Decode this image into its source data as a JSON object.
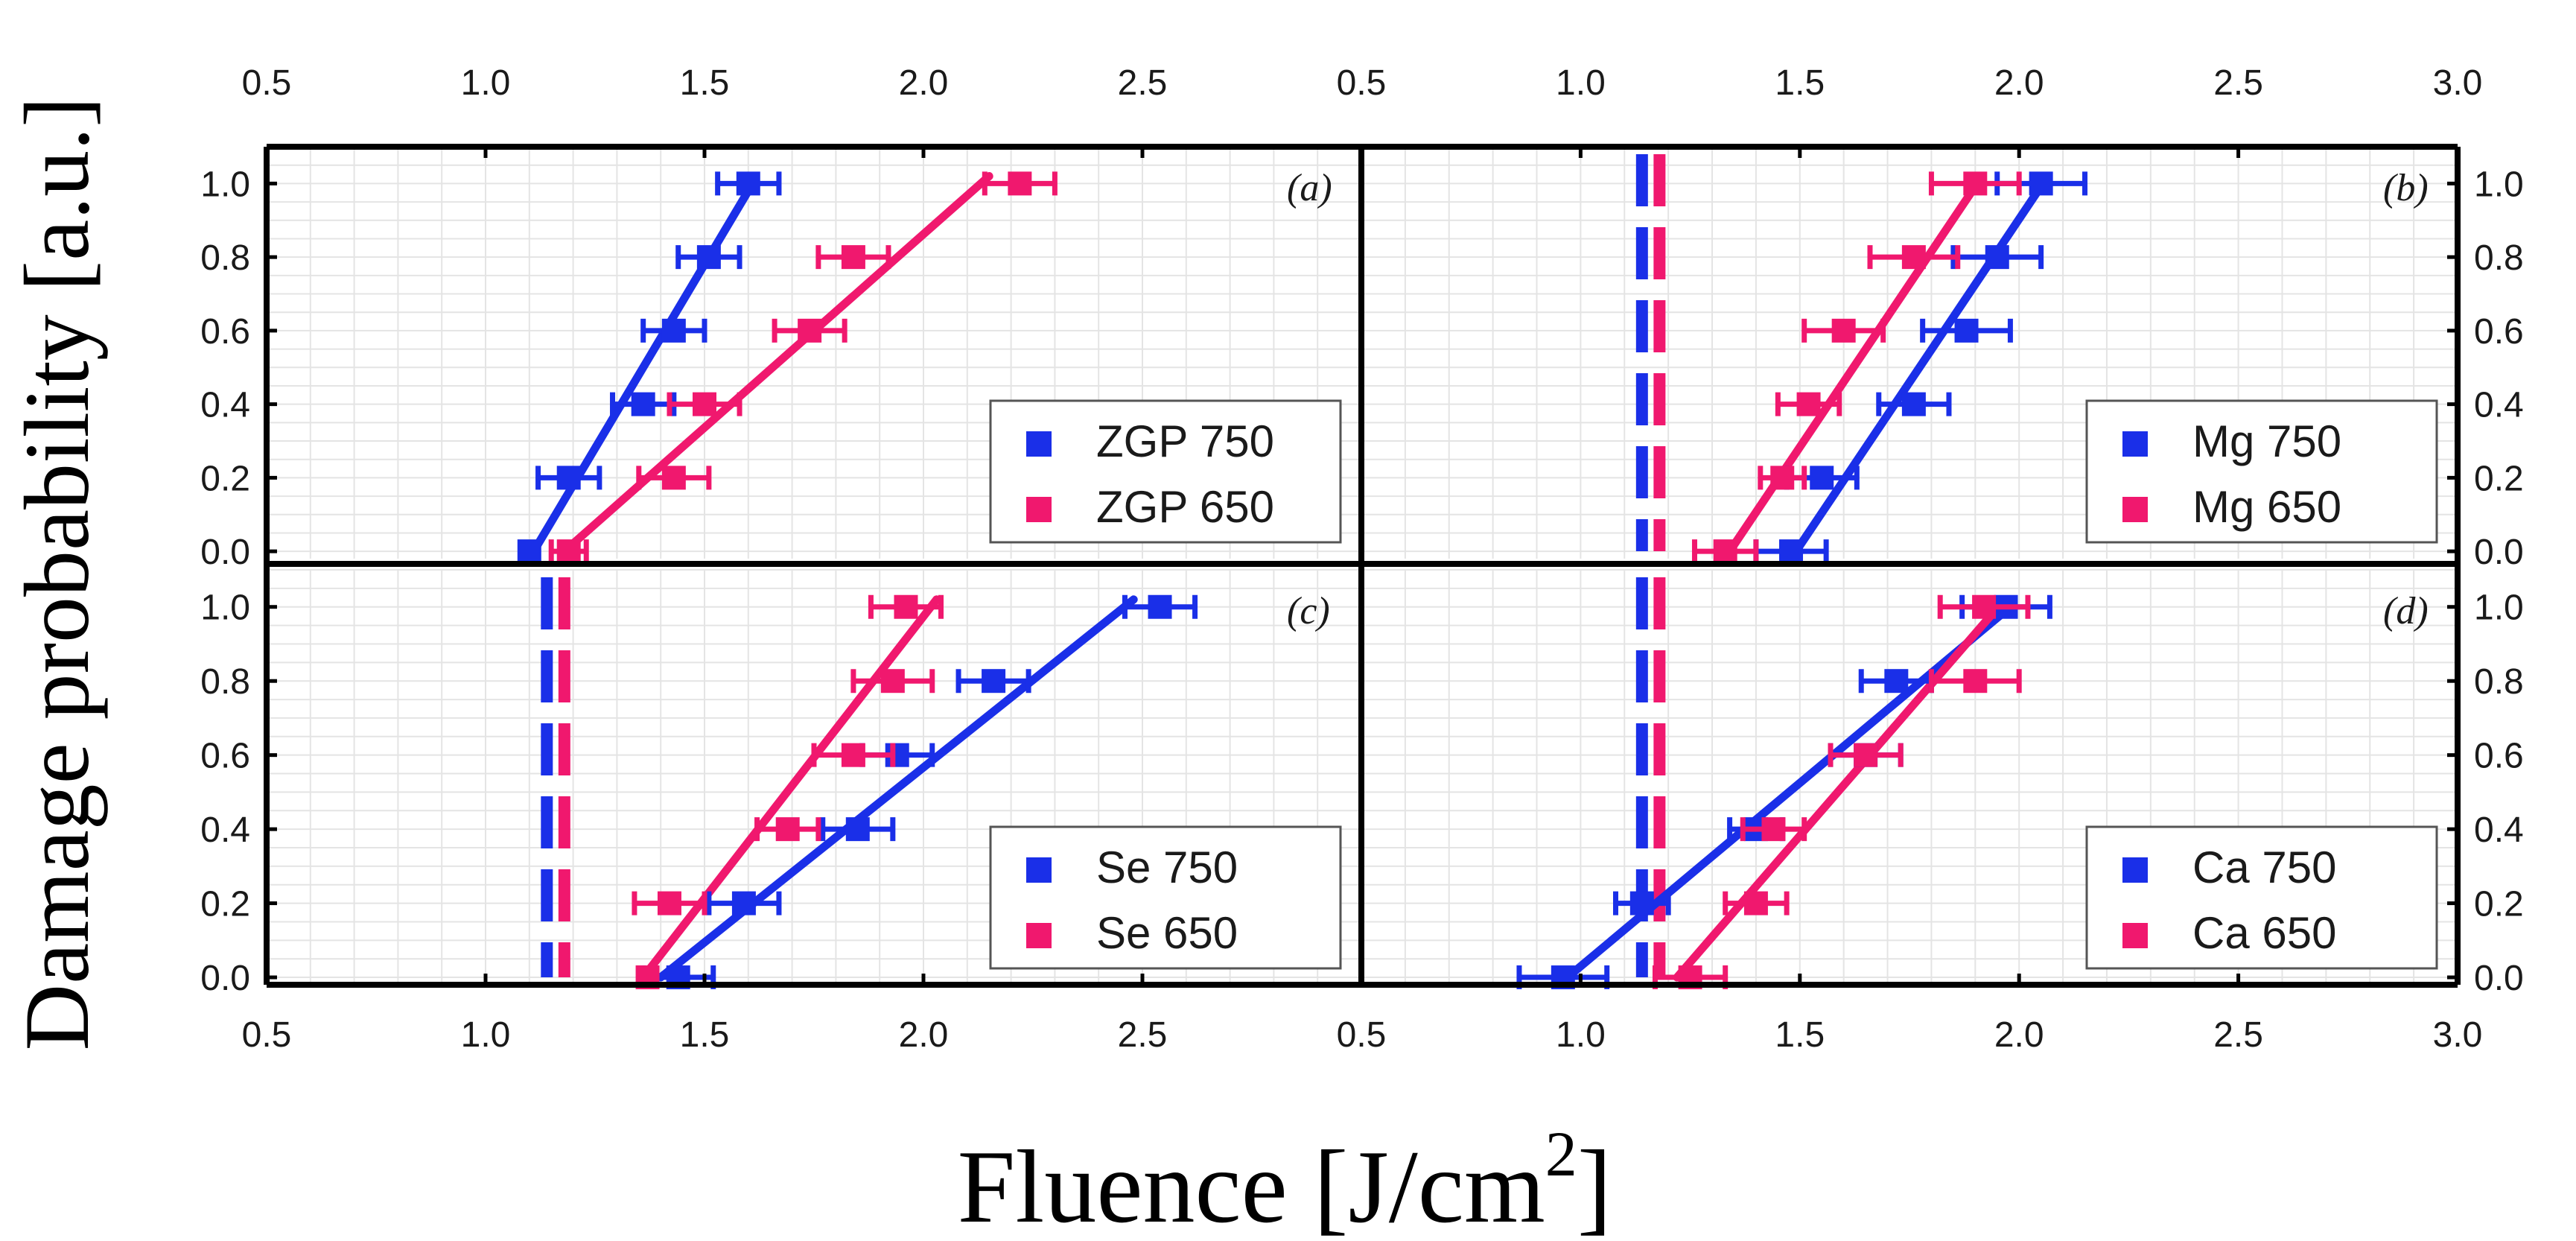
{
  "figure": {
    "ylabel": "Damage probability [a.u.]",
    "xlabel_main": "Fluence [J/cm",
    "xlabel_sup": "2",
    "xlabel_end": "]"
  },
  "colors": {
    "blue": "#1a2fe8",
    "pink": "#f0186e"
  },
  "chart_data": [
    {
      "type": "scatter",
      "panel": "(a)",
      "xlim": [
        0.5,
        3.0
      ],
      "ylim": [
        0.0,
        1.1
      ],
      "x_ticks": [
        0.5,
        1.0,
        1.5,
        2.0,
        2.5
      ],
      "y_ticks": [
        0.0,
        0.2,
        0.4,
        0.6,
        0.8,
        1.0
      ],
      "grid": true,
      "legend_position": "bottom-right",
      "series": [
        {
          "name": "ZGP 750",
          "color": "#1a2fe8",
          "points": [
            {
              "x": 1.1,
              "y": 0.0,
              "err": 0.0
            },
            {
              "x": 1.19,
              "y": 0.2,
              "err": 0.07
            },
            {
              "x": 1.36,
              "y": 0.4,
              "err": 0.07
            },
            {
              "x": 1.43,
              "y": 0.6,
              "err": 0.07
            },
            {
              "x": 1.51,
              "y": 0.8,
              "err": 0.07
            },
            {
              "x": 1.6,
              "y": 1.0,
              "err": 0.07
            }
          ],
          "fit": [
            [
              1.1,
              -0.02
            ],
            [
              1.61,
              1.0
            ]
          ]
        },
        {
          "name": "ZGP 650",
          "color": "#f0186e",
          "points": [
            {
              "x": 1.19,
              "y": 0.0,
              "err": 0.04
            },
            {
              "x": 1.43,
              "y": 0.2,
              "err": 0.08
            },
            {
              "x": 1.5,
              "y": 0.4,
              "err": 0.08
            },
            {
              "x": 1.74,
              "y": 0.6,
              "err": 0.08
            },
            {
              "x": 1.84,
              "y": 0.8,
              "err": 0.08
            },
            {
              "x": 2.22,
              "y": 1.0,
              "err": 0.08
            }
          ],
          "fit": [
            [
              1.18,
              0.0
            ],
            [
              2.15,
              1.02
            ]
          ]
        }
      ]
    },
    {
      "type": "scatter",
      "panel": "(b)",
      "xlim": [
        0.5,
        3.0
      ],
      "ylim": [
        0.0,
        1.1
      ],
      "x_ticks": [
        0.5,
        1.0,
        1.5,
        2.0,
        2.5,
        3.0
      ],
      "y_ticks": [
        0.0,
        0.2,
        0.4,
        0.6,
        0.8,
        1.0
      ],
      "grid": true,
      "legend_position": "bottom-right",
      "vlines": [
        {
          "x": 1.14,
          "color": "#1a2fe8"
        },
        {
          "x": 1.18,
          "color": "#f0186e"
        }
      ],
      "series": [
        {
          "name": "Mg 750",
          "color": "#1a2fe8",
          "points": [
            {
              "x": 1.48,
              "y": 0.0,
              "err": 0.08
            },
            {
              "x": 1.55,
              "y": 0.2,
              "err": 0.08
            },
            {
              "x": 1.76,
              "y": 0.4,
              "err": 0.08
            },
            {
              "x": 1.88,
              "y": 0.6,
              "err": 0.1
            },
            {
              "x": 1.95,
              "y": 0.8,
              "err": 0.1
            },
            {
              "x": 2.05,
              "y": 1.0,
              "err": 0.1
            }
          ],
          "fit": [
            [
              1.48,
              -0.02
            ],
            [
              2.06,
              1.01
            ]
          ]
        },
        {
          "name": "Mg 650",
          "color": "#f0186e",
          "points": [
            {
              "x": 1.33,
              "y": 0.0,
              "err": 0.07
            },
            {
              "x": 1.46,
              "y": 0.2,
              "err": 0.05
            },
            {
              "x": 1.52,
              "y": 0.4,
              "err": 0.07
            },
            {
              "x": 1.6,
              "y": 0.6,
              "err": 0.09
            },
            {
              "x": 1.76,
              "y": 0.8,
              "err": 0.1
            },
            {
              "x": 1.9,
              "y": 1.0,
              "err": 0.1
            }
          ],
          "fit": [
            [
              1.34,
              0.0
            ],
            [
              1.91,
              1.01
            ]
          ]
        }
      ]
    },
    {
      "type": "scatter",
      "panel": "(c)",
      "xlim": [
        0.5,
        3.0
      ],
      "ylim": [
        0.0,
        1.1
      ],
      "x_ticks": [
        0.5,
        1.0,
        1.5,
        2.0,
        2.5
      ],
      "y_ticks": [
        0.0,
        0.2,
        0.4,
        0.6,
        0.8,
        1.0
      ],
      "grid": true,
      "legend_position": "bottom-right",
      "vlines": [
        {
          "x": 1.14,
          "color": "#1a2fe8"
        },
        {
          "x": 1.18,
          "color": "#f0186e"
        }
      ],
      "series": [
        {
          "name": "Se 750",
          "color": "#1a2fe8",
          "points": [
            {
              "x": 1.44,
              "y": 0.0,
              "err": 0.08
            },
            {
              "x": 1.59,
              "y": 0.2,
              "err": 0.08
            },
            {
              "x": 1.85,
              "y": 0.4,
              "err": 0.08
            },
            {
              "x": 1.94,
              "y": 0.6,
              "err": 0.08
            },
            {
              "x": 2.16,
              "y": 0.8,
              "err": 0.08
            },
            {
              "x": 2.54,
              "y": 1.0,
              "err": 0.08
            }
          ],
          "fit": [
            [
              1.4,
              0.0
            ],
            [
              2.48,
              1.02
            ]
          ]
        },
        {
          "name": "Se 650",
          "color": "#f0186e",
          "points": [
            {
              "x": 1.37,
              "y": 0.0,
              "err": 0.02
            },
            {
              "x": 1.42,
              "y": 0.2,
              "err": 0.08
            },
            {
              "x": 1.69,
              "y": 0.4,
              "err": 0.07
            },
            {
              "x": 1.84,
              "y": 0.6,
              "err": 0.09
            },
            {
              "x": 1.93,
              "y": 0.8,
              "err": 0.09
            },
            {
              "x": 1.96,
              "y": 1.0,
              "err": 0.08
            }
          ],
          "fit": [
            [
              1.36,
              0.0
            ],
            [
              2.03,
              1.02
            ]
          ]
        }
      ]
    },
    {
      "type": "scatter",
      "panel": "(d)",
      "xlim": [
        0.5,
        3.0
      ],
      "ylim": [
        0.0,
        1.1
      ],
      "x_ticks": [
        0.5,
        1.0,
        1.5,
        2.0,
        2.5,
        3.0
      ],
      "y_ticks": [
        0.0,
        0.2,
        0.4,
        0.6,
        0.8,
        1.0
      ],
      "grid": true,
      "legend_position": "bottom-right",
      "vlines": [
        {
          "x": 1.14,
          "color": "#1a2fe8"
        },
        {
          "x": 1.18,
          "color": "#f0186e"
        }
      ],
      "series": [
        {
          "name": "Ca 750",
          "color": "#1a2fe8",
          "points": [
            {
              "x": 0.96,
              "y": 0.0,
              "err": 0.1
            },
            {
              "x": 1.14,
              "y": 0.2,
              "err": 0.06
            },
            {
              "x": 1.4,
              "y": 0.4,
              "err": 0.06
            },
            {
              "x": 1.65,
              "y": 0.6,
              "err": 0.08
            },
            {
              "x": 1.72,
              "y": 0.8,
              "err": 0.08
            },
            {
              "x": 1.97,
              "y": 1.0,
              "err": 0.1
            }
          ],
          "fit": [
            [
              0.96,
              -0.01
            ],
            [
              1.98,
              1.0
            ]
          ]
        },
        {
          "name": "Ca 650",
          "color": "#f0186e",
          "points": [
            {
              "x": 1.25,
              "y": 0.0,
              "err": 0.08
            },
            {
              "x": 1.4,
              "y": 0.2,
              "err": 0.07
            },
            {
              "x": 1.44,
              "y": 0.4,
              "err": 0.07
            },
            {
              "x": 1.65,
              "y": 0.6,
              "err": 0.08
            },
            {
              "x": 1.9,
              "y": 0.8,
              "err": 0.1
            },
            {
              "x": 1.92,
              "y": 1.0,
              "err": 0.1
            }
          ],
          "fit": [
            [
              1.22,
              0.0
            ],
            [
              1.96,
              1.01
            ]
          ]
        }
      ]
    }
  ]
}
